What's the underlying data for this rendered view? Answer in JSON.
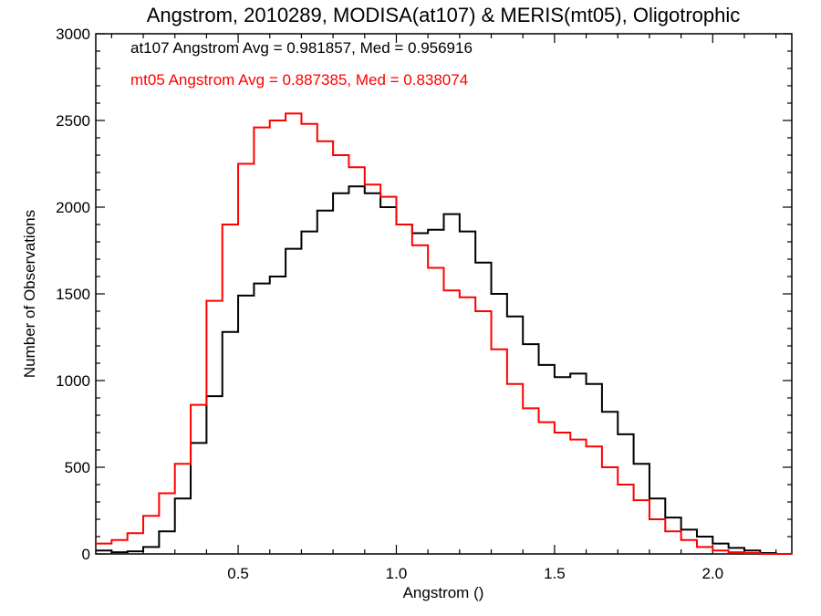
{
  "chart_data": {
    "type": "line",
    "title": "Angstrom, 2010289, MODISA(at107) & MERIS(mt05), Oligotrophic",
    "xlabel": "Angstrom ()",
    "ylabel": "Number of Observations",
    "xlim": [
      0.05,
      2.25
    ],
    "ylim": [
      0,
      3000
    ],
    "xticks": [
      0.5,
      1.0,
      1.5,
      2.0
    ],
    "xtick_labels": [
      "0.5",
      "1.0",
      "1.5",
      "2.0"
    ],
    "yticks": [
      0,
      500,
      1000,
      1500,
      2000,
      2500,
      3000
    ],
    "ytick_labels": [
      "0",
      "500",
      "1000",
      "1500",
      "2000",
      "2500",
      "3000"
    ],
    "grid": false,
    "legend_placement": "top-left",
    "step": true,
    "series": [
      {
        "name": "at107",
        "annotation": "at107 Angstrom Avg = 0.981857, Med = 0.956916",
        "color": "#000000",
        "x": [
          0.05,
          0.1,
          0.15,
          0.2,
          0.25,
          0.3,
          0.35,
          0.4,
          0.45,
          0.5,
          0.55,
          0.6,
          0.65,
          0.7,
          0.75,
          0.8,
          0.85,
          0.9,
          0.95,
          1.0,
          1.05,
          1.1,
          1.15,
          1.2,
          1.25,
          1.3,
          1.35,
          1.4,
          1.45,
          1.5,
          1.55,
          1.6,
          1.65,
          1.7,
          1.75,
          1.8,
          1.85,
          1.9,
          1.95,
          2.0,
          2.05,
          2.1,
          2.15,
          2.2
        ],
        "y": [
          20,
          10,
          15,
          40,
          130,
          320,
          640,
          910,
          1280,
          1490,
          1560,
          1600,
          1760,
          1860,
          1980,
          2080,
          2120,
          2080,
          2000,
          1900,
          1850,
          1870,
          1960,
          1860,
          1680,
          1500,
          1370,
          1210,
          1090,
          1020,
          1040,
          980,
          820,
          690,
          520,
          320,
          210,
          140,
          100,
          60,
          35,
          20,
          5,
          0
        ]
      },
      {
        "name": "mt05",
        "annotation": "mt05 Angstrom Avg = 0.887385, Med = 0.838074",
        "color": "#ff0000",
        "x": [
          0.05,
          0.1,
          0.15,
          0.2,
          0.25,
          0.3,
          0.35,
          0.4,
          0.45,
          0.5,
          0.55,
          0.6,
          0.65,
          0.7,
          0.75,
          0.8,
          0.85,
          0.9,
          0.95,
          1.0,
          1.05,
          1.1,
          1.15,
          1.2,
          1.25,
          1.3,
          1.35,
          1.4,
          1.45,
          1.5,
          1.55,
          1.6,
          1.65,
          1.7,
          1.75,
          1.8,
          1.85,
          1.9,
          1.95,
          2.0,
          2.05,
          2.1,
          2.15,
          2.2
        ],
        "y": [
          60,
          80,
          120,
          220,
          350,
          520,
          860,
          1460,
          1900,
          2250,
          2460,
          2500,
          2540,
          2480,
          2380,
          2300,
          2230,
          2130,
          2060,
          1900,
          1780,
          1650,
          1520,
          1480,
          1400,
          1180,
          980,
          840,
          760,
          700,
          660,
          620,
          500,
          400,
          310,
          200,
          130,
          80,
          40,
          20,
          10,
          5,
          0,
          0
        ]
      }
    ]
  }
}
